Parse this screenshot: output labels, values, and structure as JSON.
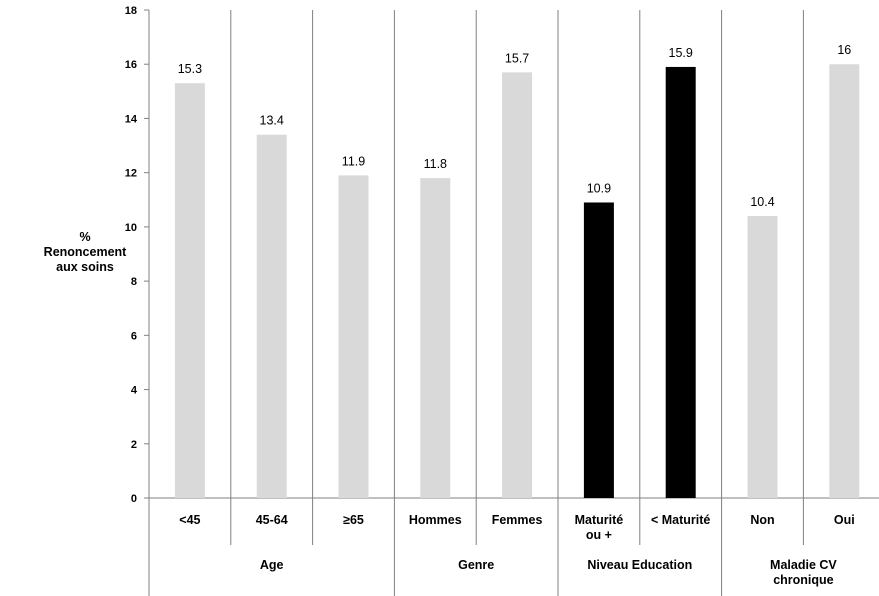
{
  "chart_data": {
    "type": "bar",
    "ylabel": [
      "%",
      "Renoncement",
      "aux soins"
    ],
    "ylim": [
      0,
      18
    ],
    "yticks": [
      "0",
      "2",
      "4",
      "6",
      "8",
      "10",
      "12",
      "14",
      "16",
      "18"
    ],
    "categories": [
      [
        "<45"
      ],
      [
        "45-64"
      ],
      [
        "≥65"
      ],
      [
        "Hommes"
      ],
      [
        "Femmes"
      ],
      [
        "Maturité",
        "ou +"
      ],
      [
        "< Maturité"
      ],
      [
        "Non"
      ],
      [
        "Oui"
      ]
    ],
    "values": [
      15.3,
      13.4,
      11.9,
      11.8,
      15.7,
      10.9,
      15.9,
      10.4,
      16
    ],
    "value_labels": [
      "15.3",
      "13.4",
      "11.9",
      "11.8",
      "15.7",
      "10.9",
      "15.9",
      "10.4",
      "16"
    ],
    "bar_colors": [
      "#d9d9d9",
      "#d9d9d9",
      "#d9d9d9",
      "#d9d9d9",
      "#d9d9d9",
      "#000000",
      "#000000",
      "#d9d9d9",
      "#d9d9d9"
    ],
    "groups": [
      {
        "label": [
          "Age"
        ],
        "count": 3
      },
      {
        "label": [
          "Genre"
        ],
        "count": 2
      },
      {
        "label": [
          "Niveau Education"
        ],
        "count": 2
      },
      {
        "label": [
          "Maladie CV",
          "chronique"
        ],
        "count": 2
      }
    ],
    "grid": false,
    "category_separators": true
  }
}
